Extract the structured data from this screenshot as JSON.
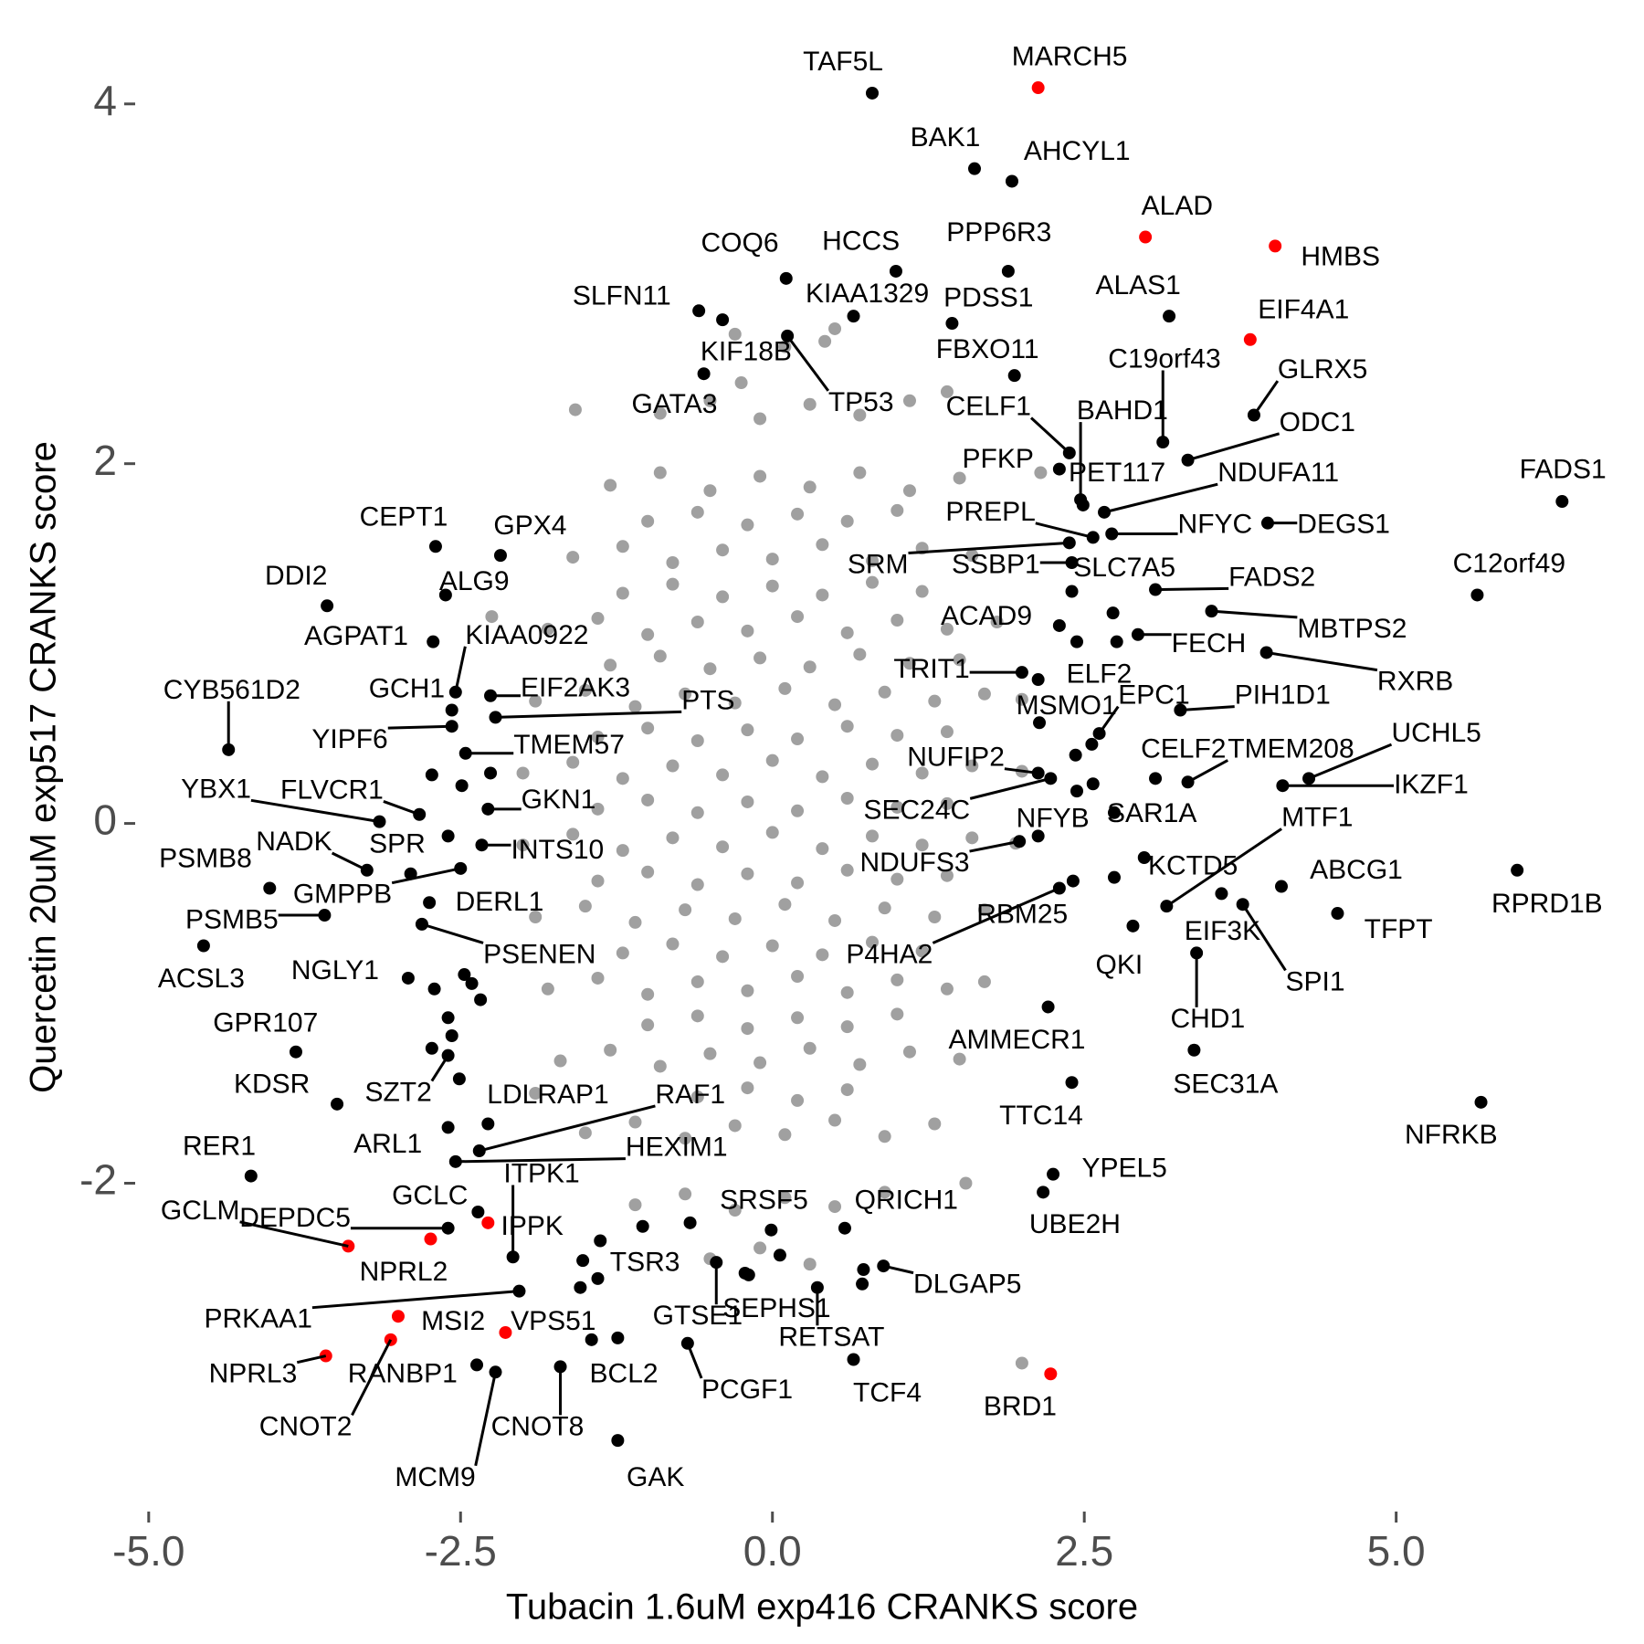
{
  "chart_data": {
    "type": "scatter",
    "x_label": "Tubacin 1.6uM exp416 CRANKS score",
    "y_label": "Quercetin 20uM exp517 CRANKS score",
    "xlim": [
      -5.35,
      6.95
    ],
    "ylim": [
      -3.8,
      4.4
    ],
    "xticks": [
      {
        "value": -5,
        "label": "-5.0"
      },
      {
        "value": -2.5,
        "label": "-2.5"
      },
      {
        "value": 0,
        "label": "0.0"
      },
      {
        "value": 2.5,
        "label": "2.5"
      },
      {
        "value": 5,
        "label": "5.0"
      }
    ],
    "yticks": [
      -2,
      0,
      2,
      4
    ],
    "grid": false,
    "series": [
      {
        "color": "#a0a0a0",
        "x": [
          -0.3,
          0.1,
          0.5,
          -0.9,
          -0.5,
          -0.1,
          0.3,
          0.7,
          1.1,
          -1.3,
          -0.9,
          -0.5,
          -0.1,
          0.3,
          0.7,
          1.1,
          1.5,
          -1.0,
          -0.6,
          -0.2,
          0.2,
          0.6,
          1.0,
          -1.6,
          -1.2,
          -0.8,
          -0.4,
          0,
          0.4,
          0.8,
          1.2,
          1.6,
          -1.2,
          -0.8,
          -0.4,
          0,
          0.4,
          0.8,
          1.2,
          -1.8,
          -1.4,
          -1.0,
          -0.6,
          -0.2,
          0.2,
          0.6,
          1.0,
          1.4,
          1.8,
          -1.3,
          -0.9,
          -0.5,
          -0.1,
          0.3,
          0.7,
          1.1,
          1.5,
          -1.9,
          -1.5,
          -1.1,
          -0.7,
          -0.3,
          0.1,
          0.5,
          0.9,
          1.3,
          1.7,
          2.0,
          -1.4,
          -1.0,
          -0.6,
          -0.2,
          0.2,
          0.6,
          1.0,
          1.4,
          -2.0,
          -1.6,
          -1.2,
          -0.8,
          -0.4,
          0,
          0.4,
          0.8,
          1.2,
          1.6,
          2.0,
          -1.4,
          -1.0,
          -0.6,
          -0.2,
          0.2,
          0.6,
          1.0,
          1.4,
          -2.0,
          -1.6,
          -1.2,
          -0.8,
          -0.4,
          0,
          0.4,
          0.8,
          1.2,
          1.6,
          1.95,
          -1.4,
          -1.0,
          -0.6,
          -0.2,
          0.2,
          0.6,
          1.0,
          1.4,
          -1.9,
          -1.5,
          -1.1,
          -0.7,
          -0.3,
          0.1,
          0.5,
          0.9,
          1.3,
          1.7,
          -1.2,
          -0.8,
          -0.4,
          0,
          0.4,
          0.8,
          1.2,
          -1.8,
          -1.4,
          -1.0,
          -0.6,
          -0.2,
          0.2,
          0.6,
          1.0,
          1.4,
          1.7,
          -1.0,
          -0.6,
          -0.2,
          0.2,
          0.6,
          1.0,
          -1.7,
          -1.3,
          -0.9,
          -0.5,
          -0.1,
          0.3,
          0.7,
          1.1,
          1.5,
          -0.6,
          -0.2,
          0.2,
          0.6,
          -1.5,
          -1.1,
          -0.7,
          -0.3,
          0.1,
          0.5,
          0.9,
          1.3,
          -1.1,
          -0.7,
          -0.3,
          0.1,
          0.5,
          0.9,
          -0.5,
          -0.1,
          0.3,
          -1.58,
          0.42,
          2.0,
          1.4,
          -0.25,
          1.55,
          -1.9,
          2.15,
          -2.25
        ],
        "y": [
          2.72,
          2.65,
          2.75,
          2.28,
          2.35,
          2.25,
          2.33,
          2.27,
          2.35,
          1.88,
          1.95,
          1.85,
          1.93,
          1.87,
          1.95,
          1.85,
          1.92,
          1.68,
          1.73,
          1.66,
          1.72,
          1.68,
          1.74,
          1.48,
          1.54,
          1.45,
          1.52,
          1.47,
          1.55,
          1.46,
          1.53,
          1.49,
          1.28,
          1.33,
          1.26,
          1.32,
          1.27,
          1.34,
          1.29,
          1.08,
          1.14,
          1.05,
          1.12,
          1.07,
          1.15,
          1.06,
          1.13,
          1.08,
          1.12,
          0.88,
          0.93,
          0.86,
          0.92,
          0.87,
          0.94,
          0.89,
          0.91,
          0.68,
          0.74,
          0.65,
          0.72,
          0.67,
          0.75,
          0.66,
          0.73,
          0.68,
          0.72,
          0.69,
          0.48,
          0.53,
          0.46,
          0.52,
          0.47,
          0.54,
          0.49,
          0.51,
          0.28,
          0.34,
          0.25,
          0.32,
          0.27,
          0.35,
          0.26,
          0.33,
          0.28,
          0.32,
          0.29,
          0.08,
          0.13,
          0.06,
          0.12,
          0.07,
          0.14,
          0.09,
          0.11,
          -0.12,
          -0.06,
          -0.15,
          -0.08,
          -0.13,
          -0.05,
          -0.14,
          -0.07,
          -0.12,
          -0.08,
          -0.11,
          -0.32,
          -0.27,
          -0.34,
          -0.28,
          -0.33,
          -0.26,
          -0.31,
          -0.29,
          -0.52,
          -0.46,
          -0.55,
          -0.48,
          -0.53,
          -0.45,
          -0.54,
          -0.47,
          -0.52,
          -0.48,
          -0.72,
          -0.67,
          -0.74,
          -0.68,
          -0.73,
          -0.66,
          -0.71,
          -0.92,
          -0.86,
          -0.95,
          -0.88,
          -0.93,
          -0.85,
          -0.94,
          -0.87,
          -0.92,
          -0.88,
          -1.12,
          -1.07,
          -1.14,
          -1.08,
          -1.13,
          -1.06,
          -1.32,
          -1.26,
          -1.35,
          -1.28,
          -1.33,
          -1.25,
          -1.34,
          -1.27,
          -1.31,
          -1.52,
          -1.47,
          -1.54,
          -1.48,
          -1.72,
          -1.66,
          -1.75,
          -1.68,
          -1.73,
          -1.65,
          -1.74,
          -1.67,
          -2.12,
          -2.06,
          -2.15,
          -2.08,
          -2.13,
          -2.05,
          -2.42,
          -2.36,
          -2.45,
          2.3,
          2.68,
          -3.0,
          2.4,
          2.45,
          -2.0,
          -1.5,
          1.95,
          1.15
        ]
      },
      {
        "color": "#000000",
        "x": [
          0.8,
          1.62,
          1.92,
          0.11,
          0.99,
          1.89,
          -0.59,
          -0.4,
          0.65,
          1.44,
          3.18,
          -0.55,
          0.12,
          1.94,
          3.13,
          3.86,
          2.38,
          2.47,
          3.33,
          2.3,
          2.49,
          2.66,
          6.33,
          2.57,
          2.72,
          3.97,
          2.38,
          2.4,
          2.4,
          3.07,
          5.65,
          -2.7,
          -2.18,
          -3.57,
          -2.62,
          -2.72,
          -2.54,
          -2.57,
          -4.36,
          -2.26,
          -2.22,
          -2.57,
          -2.46,
          -3.15,
          -2.83,
          -3.25,
          -2.9,
          -4.03,
          -2.5,
          -3.59,
          -4.56,
          -2.75,
          -2.81,
          -2.92,
          -3.82,
          -3.49,
          -2.6,
          -2.28,
          -2.35,
          -2.6,
          -2.54,
          -2.08,
          -4.18,
          -2.36,
          -2.6,
          -2.03,
          -2.37,
          -2.22,
          -1.7,
          -1.24,
          -1.24,
          -0.68,
          0.65,
          0.36,
          -0.19,
          -0.45,
          -0.01,
          0.58,
          -1.52,
          0.89,
          2.25,
          2.17,
          2.4,
          2.21,
          3.38,
          5.68,
          3.4,
          2.89,
          3.6,
          3.77,
          4.53,
          5.97,
          4.08,
          2.98,
          3.16,
          2.74,
          2.13,
          1.98,
          2.41,
          2.3,
          2.13,
          2.23,
          3.07,
          3.33,
          4.3,
          4.09,
          3.27,
          2.62,
          2.14,
          2.13,
          2.0,
          2.3,
          2.93,
          3.52,
          3.96,
          -2.33,
          -2.28,
          2.73,
          2.76,
          2.44,
          2.43,
          2.56,
          2.44,
          2.57,
          2.74,
          -2.73,
          -2.49,
          -2.26,
          -2.6,
          -2.47,
          -2.71,
          -2.41,
          -2.6,
          -2.34,
          -2.57,
          -2.73,
          -2.51,
          -1.38,
          -1.04,
          -0.66,
          -1.54,
          -1.4,
          0.06,
          0.72,
          0.73,
          -1.45,
          -0.22
        ],
        "y": [
          4.06,
          3.64,
          3.57,
          3.03,
          3.07,
          3.07,
          2.85,
          2.8,
          2.82,
          2.78,
          2.82,
          2.5,
          2.71,
          2.49,
          2.12,
          2.27,
          2.06,
          1.8,
          2.02,
          1.97,
          1.77,
          1.73,
          1.79,
          1.59,
          1.61,
          1.67,
          1.56,
          1.45,
          1.29,
          1.3,
          1.27,
          1.54,
          1.49,
          1.21,
          1.27,
          1.01,
          0.73,
          0.63,
          0.41,
          0.71,
          0.59,
          0.54,
          0.39,
          0.01,
          0.05,
          -0.26,
          -0.28,
          -0.36,
          -0.25,
          -0.51,
          -0.68,
          -0.44,
          -0.56,
          -0.86,
          -1.27,
          -1.56,
          -1.29,
          -1.67,
          -1.82,
          -1.69,
          -1.88,
          -2.41,
          -1.96,
          -2.16,
          -2.25,
          -2.6,
          -3.01,
          -3.05,
          -3.02,
          -2.86,
          -3.43,
          -2.89,
          -2.98,
          -2.58,
          -2.51,
          -2.44,
          -2.26,
          -2.25,
          -2.43,
          -2.46,
          -1.95,
          -2.05,
          -1.44,
          -1.02,
          -1.26,
          -1.55,
          -0.72,
          -0.57,
          -0.39,
          -0.45,
          -0.5,
          -0.26,
          -0.35,
          -0.19,
          -0.46,
          0.06,
          -0.07,
          -0.1,
          -0.32,
          -0.36,
          0.28,
          0.25,
          0.25,
          0.23,
          0.25,
          0.21,
          0.63,
          0.5,
          0.56,
          0.8,
          0.84,
          1.1,
          1.05,
          1.18,
          0.95,
          -0.12,
          0.08,
          1.17,
          1.01,
          1.01,
          0.38,
          0.44,
          0.18,
          0.22,
          -0.3,
          0.27,
          0.21,
          0.28,
          -0.07,
          -0.84,
          -0.92,
          -0.89,
          -1.08,
          -0.98,
          -1.18,
          -1.25,
          -1.42,
          -2.32,
          -2.24,
          -2.22,
          -2.58,
          -2.53,
          -2.4,
          -2.56,
          -2.48,
          -2.87,
          -2.5
        ],
        "labels": [
          "TAF5L",
          "BAK1",
          "AHCYL1",
          "COQ6",
          "HCCS",
          "PPP6R3",
          "SLFN11",
          "KIF18B",
          "KIAA1329",
          "PDSS1",
          "ALAS1",
          "GATA3",
          "TP53",
          "FBXO11",
          "C19orf43",
          "GLRX5",
          "CELF1",
          "BAHD1",
          "ODC1",
          "PFKP",
          "PET117",
          "NDUFA11",
          "FADS1",
          "PREPL",
          "NFYC",
          "DEGS1",
          "SRM",
          "SSBP1",
          "SLC7A5",
          "FADS2",
          "C12orf49",
          "CEPT1",
          "GPX4",
          "DDI2",
          "ALG9",
          "AGPAT1",
          "KIAA0922",
          "GCH1",
          "CYB561D2",
          "EIF2AK3",
          "PTS",
          "YIPF6",
          "TMEM57",
          "YBX1",
          "FLVCR1",
          "NADK",
          "SPR",
          "PSMB8",
          "GMPPB",
          "PSMB5",
          "ACSL3",
          "DERL1",
          "PSENEN",
          "NGLY1",
          "GPR107",
          "KDSR",
          "SZT2",
          "LDLRAP1",
          "RAF1",
          "ARL1",
          "HEXIM1",
          "ITPK1",
          "RER1",
          "GCLC",
          "DEPDC5",
          "PRKAA1",
          "RANBP1",
          "MCM9",
          "CNOT8",
          "BCL2",
          "GAK",
          "PCGF1",
          "TCF4",
          "RETSAT",
          "SEPHS1",
          "GTSE1",
          "SRSF5",
          "QRICH1",
          "TSR3",
          "DLGAP5",
          "YPEL5",
          "UBE2H",
          "TTC14",
          "AMMECR1",
          "SEC31A",
          "NFRKB",
          "CHD1",
          "QKI",
          "EIF3K",
          "SPI1",
          "TFPT",
          "RPRD1B",
          "ABCG1",
          "KCTD5",
          "MTF1",
          "SAR1A",
          "NFYB",
          "NDUFS3",
          "RBM25",
          "P4HA2",
          "NUFIP2",
          "SEC24C",
          "CELF2",
          "TMEM208",
          "UCHL5",
          "IKZF1",
          "PIH1D1",
          "EPC1",
          "MSMO1",
          "ELF2",
          "TRIT1",
          "ACAD9",
          "FECH",
          "MBTPS2",
          "RXRB",
          "INTS10",
          "GKN1",
          null,
          null,
          null,
          null,
          null,
          null,
          null,
          null,
          null,
          null,
          null,
          null,
          null,
          null,
          null,
          null,
          null,
          null,
          null,
          null,
          null,
          null,
          null,
          null,
          null,
          null,
          null,
          null,
          null,
          null
        ]
      },
      {
        "color": "#ff0000",
        "x": [
          2.13,
          2.99,
          4.03,
          3.83,
          -3.4,
          -2.74,
          -2.28,
          -3.0,
          -3.06,
          -3.58,
          -2.14,
          2.23
        ],
        "y": [
          4.09,
          3.26,
          3.21,
          2.69,
          -2.35,
          -2.31,
          -2.22,
          -2.74,
          -2.87,
          -2.96,
          -2.83,
          -3.06
        ],
        "labels": [
          "MARCH5",
          "ALAD",
          "HMBS",
          "EIF4A1",
          "GCLM",
          "NPRL2",
          "IPPK",
          "MSI2",
          "CNOT2",
          "NPRL3",
          "VPS51",
          "BRD1"
        ]
      }
    ]
  }
}
